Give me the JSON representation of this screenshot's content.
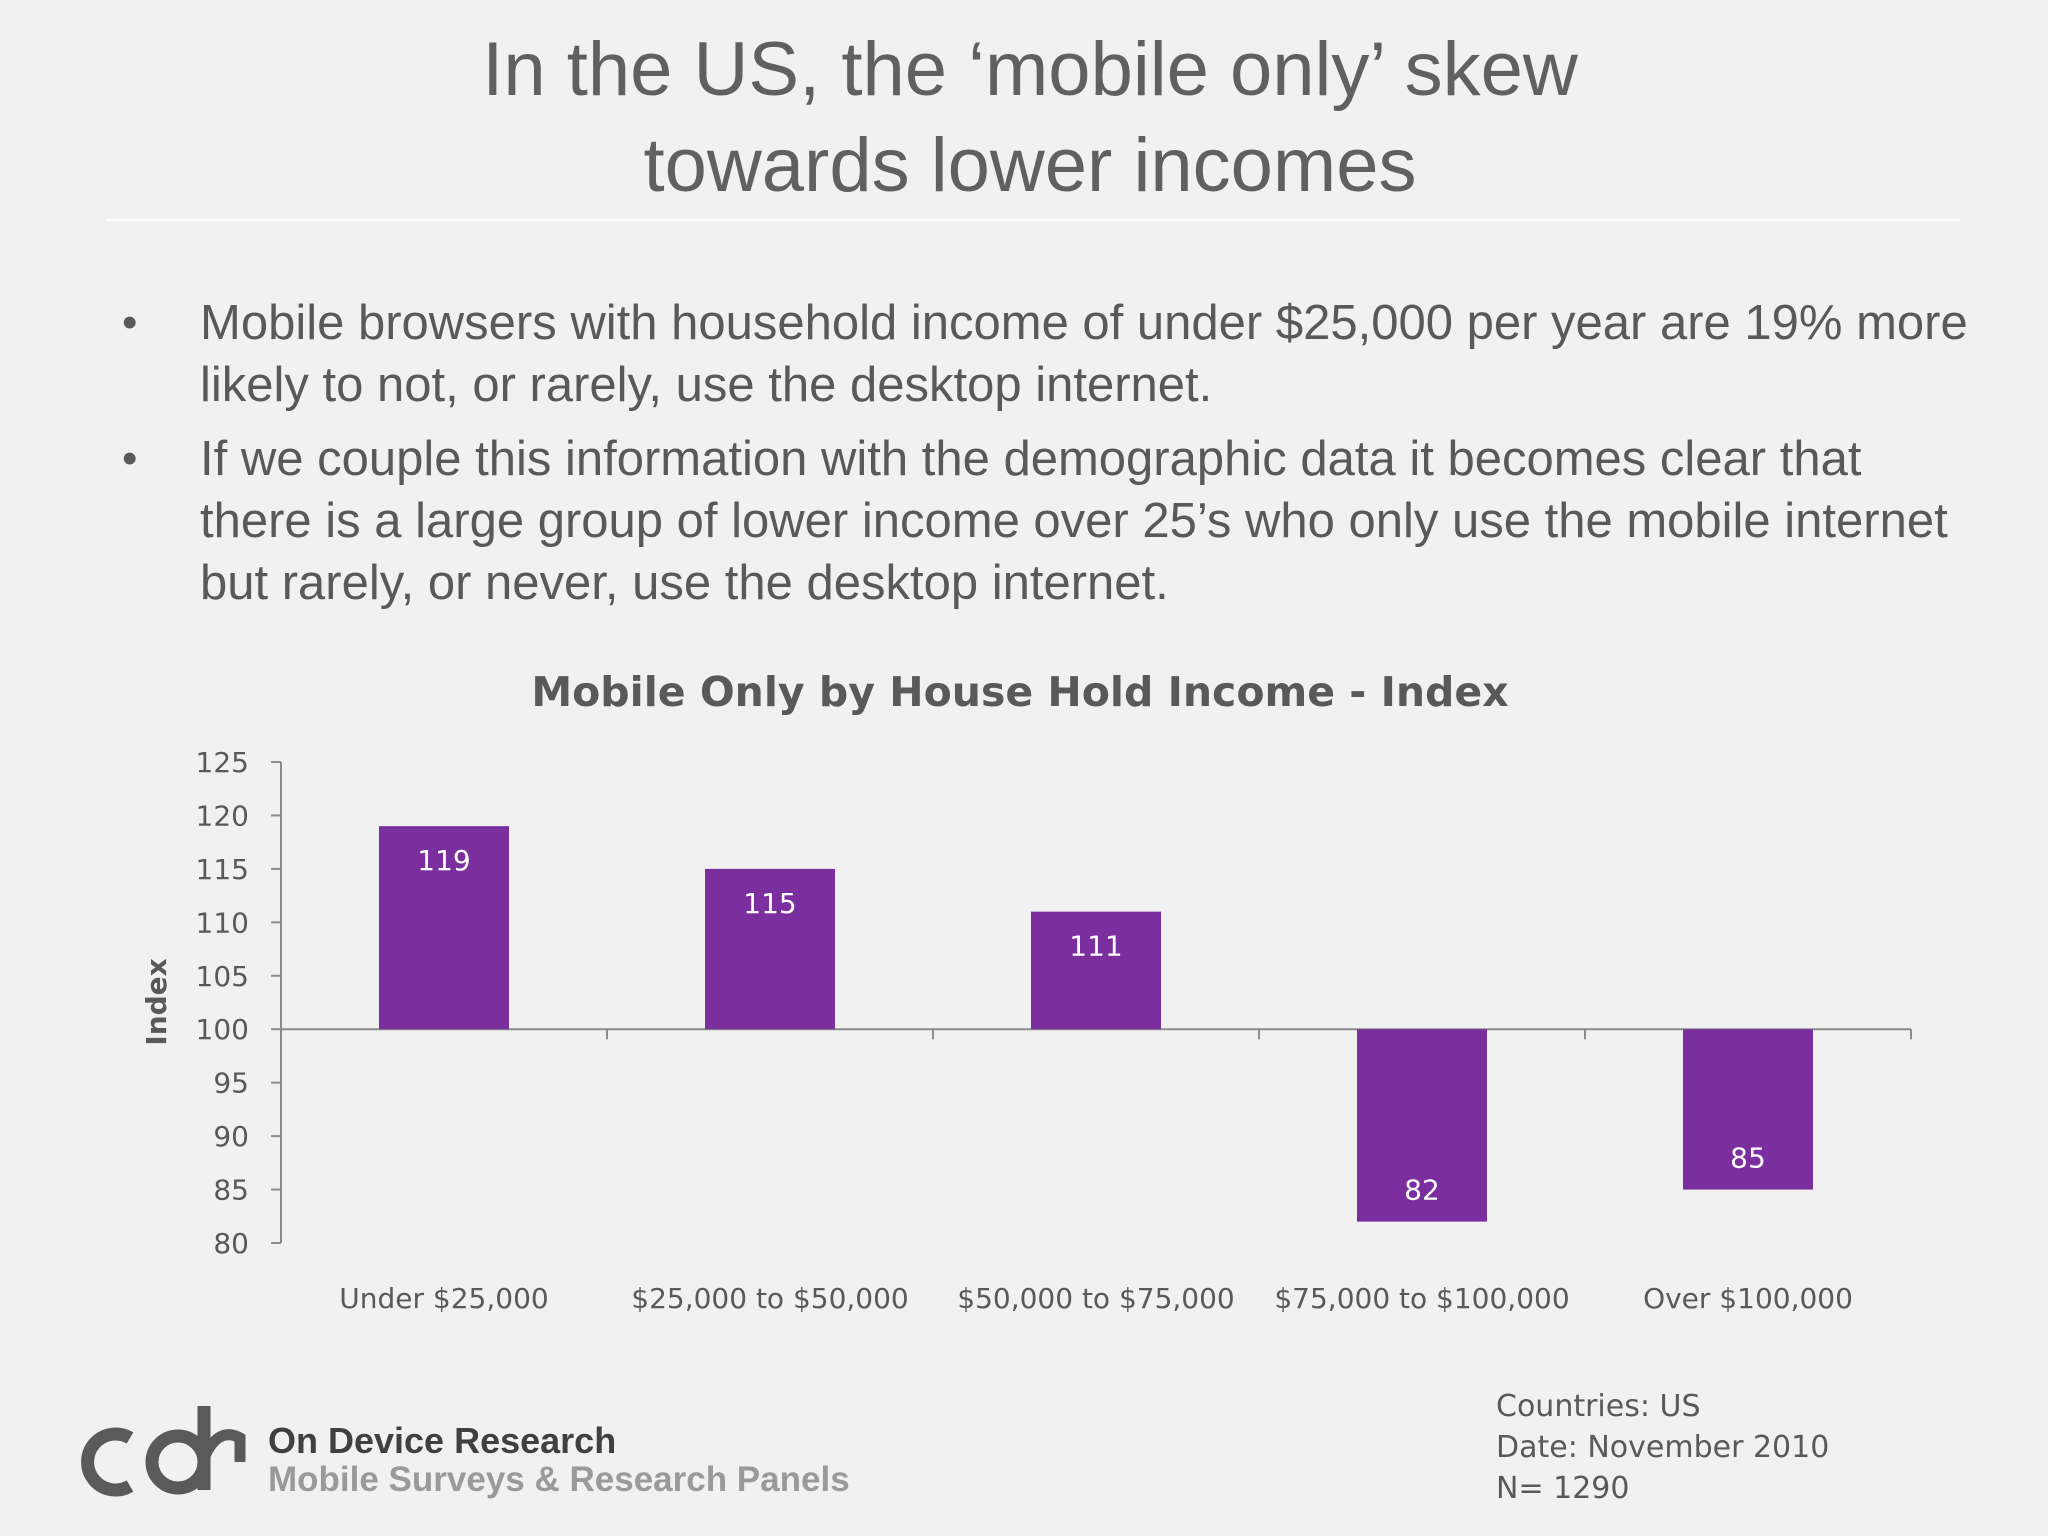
{
  "slide": {
    "title_line1": "In the US, the ‘mobile only’ skew",
    "title_line2": "towards lower incomes",
    "bullets": [
      "Mobile browsers with household income of under $25,000 per year are 19% more likely to not, or rarely, use the desktop internet.",
      "If we couple this information with the demographic data it becomes clear that there is a large group of lower income over 25’s who only use the mobile internet but rarely, or never, use the desktop internet."
    ],
    "bullet_glyph": "•"
  },
  "chart_data": {
    "type": "bar",
    "title": "Mobile Only by House Hold Income - Index",
    "xlabel": "",
    "ylabel": "Index",
    "categories": [
      "Under $25,000",
      "$25,000 to $50,000",
      "$50,000 to $75,000",
      "$75,000 to $100,000",
      "Over $100,000"
    ],
    "values": [
      119,
      115,
      111,
      82,
      85
    ],
    "data_labels": [
      "119",
      "115",
      "111",
      "82",
      "85"
    ],
    "baseline": 100,
    "ylim": [
      80,
      125
    ],
    "yticks": [
      80,
      85,
      90,
      95,
      100,
      105,
      110,
      115,
      120,
      125
    ],
    "bar_color": "#7b2f9e",
    "grid": false,
    "legend": "none"
  },
  "footer": {
    "company": "On Device Research",
    "tagline": "Mobile Surveys & Research Panels",
    "countries": "Countries: US",
    "date": "Date:  November 2010",
    "sample": "N= 1290"
  },
  "colors": {
    "background": "#f2f1f2",
    "text": "#595959",
    "bar": "#7b2f9e",
    "logo_dark": "#404040",
    "logo_light": "#9a9a9a"
  }
}
